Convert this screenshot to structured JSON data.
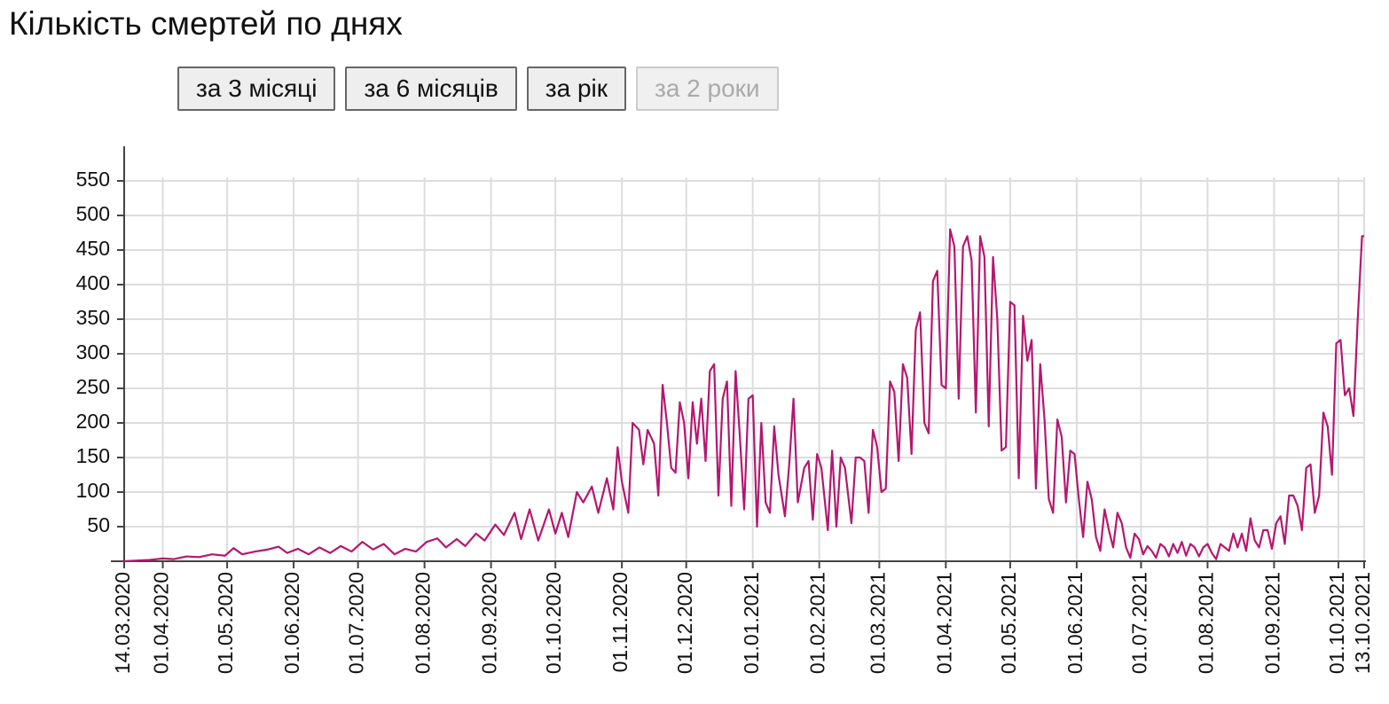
{
  "chart_data": {
    "type": "line",
    "title": "Кількість смертей по днях",
    "buttons": [
      {
        "label": "за 3 місяці",
        "disabled": false
      },
      {
        "label": "за 6 місяців",
        "disabled": false
      },
      {
        "label": "за рік",
        "disabled": false
      },
      {
        "label": "за 2 роки",
        "disabled": true
      }
    ],
    "color": "#b5176f",
    "grid": true,
    "xlim": [
      "14.03.2020",
      "13.10.2021"
    ],
    "ylim": [
      0,
      600
    ],
    "yticks": [
      50,
      100,
      150,
      200,
      250,
      300,
      350,
      400,
      450,
      500,
      550
    ],
    "xticks": [
      "14.03.2020",
      "01.04.2020",
      "01.05.2020",
      "01.06.2020",
      "01.07.2020",
      "01.08.2020",
      "01.09.2020",
      "01.10.2020",
      "01.11.2020",
      "01.12.2020",
      "01.01.2021",
      "01.02.2021",
      "01.03.2021",
      "01.04.2021",
      "01.05.2021",
      "01.06.2021",
      "01.07.2021",
      "01.08.2021",
      "01.09.2021",
      "01.10.2021",
      "13.10.2021"
    ],
    "x": [
      "14.03.2020",
      "20.03.2020",
      "26.03.2020",
      "01.04.2020",
      "06.04.2020",
      "12.04.2020",
      "18.04.2020",
      "24.04.2020",
      "30.04.2020",
      "04.05.2020",
      "08.05.2020",
      "14.05.2020",
      "20.05.2020",
      "25.05.2020",
      "29.05.2020",
      "03.06.2020",
      "08.06.2020",
      "13.06.2020",
      "18.06.2020",
      "23.06.2020",
      "28.06.2020",
      "03.07.2020",
      "08.07.2020",
      "13.07.2020",
      "18.07.2020",
      "23.07.2020",
      "28.07.2020",
      "02.08.2020",
      "07.08.2020",
      "11.08.2020",
      "16.08.2020",
      "20.08.2020",
      "25.08.2020",
      "29.08.2020",
      "03.09.2020",
      "07.09.2020",
      "12.09.2020",
      "15.09.2020",
      "19.09.2020",
      "23.09.2020",
      "28.09.2020",
      "01.10.2020",
      "04.10.2020",
      "07.10.2020",
      "11.10.2020",
      "14.10.2020",
      "18.10.2020",
      "21.10.2020",
      "25.10.2020",
      "28.10.2020",
      "30.10.2020",
      "01.11.2020",
      "04.11.2020",
      "06.11.2020",
      "09.11.2020",
      "11.11.2020",
      "13.11.2020",
      "16.11.2020",
      "18.11.2020",
      "20.11.2020",
      "22.11.2020",
      "24.11.2020",
      "26.11.2020",
      "28.11.2020",
      "30.11.2020",
      "02.12.2020",
      "04.12.2020",
      "06.12.2020",
      "08.12.2020",
      "10.12.2020",
      "12.12.2020",
      "14.12.2020",
      "16.12.2020",
      "18.12.2020",
      "20.12.2020",
      "22.12.2020",
      "24.12.2020",
      "26.12.2020",
      "28.12.2020",
      "30.12.2020",
      "01.01.2021",
      "03.01.2021",
      "05.01.2021",
      "07.01.2021",
      "09.01.2021",
      "11.01.2021",
      "13.01.2021",
      "16.01.2021",
      "18.01.2021",
      "20.01.2021",
      "22.01.2021",
      "25.01.2021",
      "27.01.2021",
      "29.01.2021",
      "31.01.2021",
      "02.02.2021",
      "05.02.2021",
      "07.02.2021",
      "09.02.2021",
      "11.02.2021",
      "13.02.2021",
      "16.02.2021",
      "18.02.2021",
      "20.02.2021",
      "22.02.2021",
      "24.02.2021",
      "26.02.2021",
      "28.02.2021",
      "02.03.2021",
      "04.03.2021",
      "06.03.2021",
      "08.03.2021",
      "10.03.2021",
      "12.03.2021",
      "14.03.2021",
      "16.03.2021",
      "18.03.2021",
      "20.03.2021",
      "22.03.2021",
      "24.03.2021",
      "26.03.2021",
      "28.03.2021",
      "30.03.2021",
      "01.04.2021",
      "03.04.2021",
      "05.04.2021",
      "07.04.2021",
      "09.04.2021",
      "11.04.2021",
      "13.04.2021",
      "15.04.2021",
      "17.04.2021",
      "19.04.2021",
      "21.04.2021",
      "23.04.2021",
      "25.04.2021",
      "27.04.2021",
      "29.04.2021",
      "01.05.2021",
      "03.05.2021",
      "05.05.2021",
      "07.05.2021",
      "09.05.2021",
      "11.05.2021",
      "13.05.2021",
      "15.05.2021",
      "17.05.2021",
      "19.05.2021",
      "21.05.2021",
      "23.05.2021",
      "25.05.2021",
      "27.05.2021",
      "29.05.2021",
      "31.05.2021",
      "02.06.2021",
      "04.06.2021",
      "06.06.2021",
      "08.06.2021",
      "10.06.2021",
      "12.06.2021",
      "14.06.2021",
      "16.06.2021",
      "18.06.2021",
      "20.06.2021",
      "22.06.2021",
      "24.06.2021",
      "26.06.2021",
      "28.06.2021",
      "30.06.2021",
      "02.07.2021",
      "04.07.2021",
      "06.07.2021",
      "08.07.2021",
      "10.07.2021",
      "12.07.2021",
      "14.07.2021",
      "16.07.2021",
      "18.07.2021",
      "20.07.2021",
      "22.07.2021",
      "24.07.2021",
      "26.07.2021",
      "28.07.2021",
      "30.07.2021",
      "01.08.2021",
      "03.08.2021",
      "05.08.2021",
      "07.08.2021",
      "09.08.2021",
      "11.08.2021",
      "13.08.2021",
      "15.08.2021",
      "17.08.2021",
      "19.08.2021",
      "21.08.2021",
      "23.08.2021",
      "25.08.2021",
      "27.08.2021",
      "29.08.2021",
      "31.08.2021",
      "02.09.2021",
      "04.09.2021",
      "06.09.2021",
      "08.09.2021",
      "10.09.2021",
      "12.09.2021",
      "14.09.2021",
      "16.09.2021",
      "18.09.2021",
      "20.09.2021",
      "22.09.2021",
      "24.09.2021",
      "26.09.2021",
      "28.09.2021",
      "30.09.2021",
      "02.10.2021",
      "04.10.2021",
      "06.10.2021",
      "08.10.2021",
      "10.10.2021",
      "12.10.2021",
      "13.10.2021"
    ],
    "values": [
      0,
      1,
      2,
      4,
      3,
      7,
      6,
      10,
      8,
      19,
      10,
      14,
      17,
      21,
      12,
      18,
      10,
      20,
      12,
      22,
      14,
      28,
      17,
      25,
      10,
      18,
      14,
      28,
      33,
      20,
      32,
      22,
      40,
      30,
      53,
      38,
      70,
      32,
      75,
      30,
      75,
      40,
      70,
      35,
      100,
      85,
      108,
      70,
      120,
      75,
      165,
      115,
      70,
      200,
      190,
      140,
      190,
      170,
      95,
      255,
      200,
      135,
      128,
      230,
      200,
      120,
      230,
      170,
      235,
      145,
      275,
      285,
      95,
      235,
      260,
      80,
      275,
      180,
      75,
      235,
      240,
      50,
      200,
      85,
      70,
      195,
      125,
      65,
      140,
      235,
      85,
      135,
      145,
      60,
      155,
      135,
      45,
      160,
      50,
      150,
      135,
      55,
      150,
      150,
      145,
      70,
      190,
      165,
      100,
      105,
      260,
      245,
      145,
      285,
      265,
      155,
      335,
      360,
      200,
      185,
      405,
      420,
      255,
      250,
      480,
      455,
      235,
      455,
      470,
      435,
      215,
      470,
      440,
      195,
      440,
      350,
      160,
      165,
      375,
      370,
      120,
      355,
      290,
      320,
      105,
      285,
      205,
      90,
      70,
      205,
      180,
      85,
      160,
      155,
      90,
      35,
      115,
      90,
      35,
      15,
      75,
      45,
      20,
      70,
      55,
      20,
      5,
      40,
      32,
      10,
      22,
      15,
      5,
      25,
      20,
      7,
      25,
      12,
      28,
      8,
      25,
      20,
      7,
      20,
      25,
      12,
      3,
      25,
      20,
      15,
      40,
      20,
      40,
      15,
      62,
      30,
      20,
      45,
      45,
      18,
      55,
      65,
      25,
      95,
      95,
      80,
      45,
      135,
      140,
      70,
      95,
      215,
      195,
      125,
      315,
      320,
      240,
      250,
      210,
      350,
      470,
      470
    ]
  }
}
